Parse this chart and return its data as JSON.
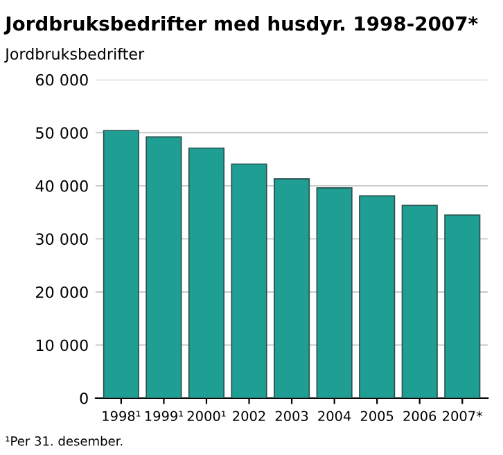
{
  "chart_data": {
    "type": "bar",
    "title": "Jordbruksbedrifter med husdyr. 1998-2007*",
    "ylabel": "Jordbruksbedrifter",
    "categories": [
      "1998¹",
      "1999¹",
      "2000¹",
      "2002",
      "2003",
      "2004",
      "2005",
      "2006",
      "2007*"
    ],
    "values": [
      50400,
      49200,
      47100,
      44100,
      41300,
      39600,
      38100,
      36300,
      34500
    ],
    "color": "#1f9e94",
    "ylim": [
      0,
      60000
    ],
    "yticks": [
      {
        "value": 0,
        "label": "0"
      },
      {
        "value": 10000,
        "label": "10 000"
      },
      {
        "value": 20000,
        "label": "20 000"
      },
      {
        "value": 30000,
        "label": "30 000"
      },
      {
        "value": 40000,
        "label": "40 000"
      },
      {
        "value": 50000,
        "label": "50 000"
      },
      {
        "value": 60000,
        "label": "60 000"
      }
    ],
    "grid": "y",
    "annotations": [
      "¹Per 31. desember."
    ]
  }
}
